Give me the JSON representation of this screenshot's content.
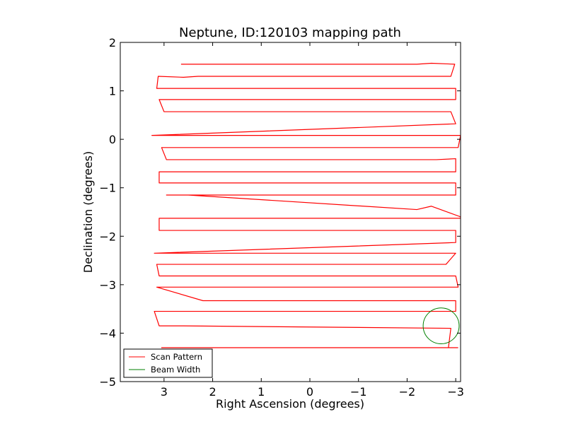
{
  "chart_data": {
    "type": "line",
    "title": "Neptune, ID:120103 mapping path",
    "xlabel": "Right Ascension (degrees)",
    "ylabel": "Declination (degrees)",
    "xlim": [
      3.9,
      -3.1
    ],
    "ylim": [
      -5,
      2
    ],
    "x_inverted": true,
    "grid": false,
    "legend_position": "lower-left",
    "xticks": [
      {
        "value": 3,
        "label": "3"
      },
      {
        "value": 2,
        "label": "2"
      },
      {
        "value": 1,
        "label": "1"
      },
      {
        "value": 0,
        "label": "0"
      },
      {
        "value": -1,
        "label": "−1"
      },
      {
        "value": -2,
        "label": "−2"
      },
      {
        "value": -3,
        "label": "−3"
      }
    ],
    "yticks": [
      {
        "value": 2,
        "label": "2"
      },
      {
        "value": 1,
        "label": "1"
      },
      {
        "value": 0,
        "label": "0"
      },
      {
        "value": -1,
        "label": "−1"
      },
      {
        "value": -2,
        "label": "−2"
      },
      {
        "value": -3,
        "label": "−3"
      },
      {
        "value": -4,
        "label": "−4"
      },
      {
        "value": -5,
        "label": "−5"
      }
    ],
    "series": [
      {
        "name": "Scan Pattern",
        "color": "#ff0000",
        "kind": "line",
        "x": [
          2.65,
          1.0,
          -2.2,
          -2.5,
          -2.98,
          -2.9,
          -1.6,
          2.3,
          2.6,
          3.12,
          3.15,
          -3.0,
          -3.0,
          3.1,
          3.0,
          2.6,
          2.2,
          -2.4,
          -2.9,
          -3.0,
          3.25,
          3.15,
          -3.1,
          -3.05,
          3.05,
          2.95,
          2.2,
          -2.6,
          -3.0,
          -3.0,
          3.1,
          3.1,
          -3.0,
          -3.0,
          2.95,
          2.5,
          -2.2,
          -2.5,
          -3.1,
          -3.1,
          3.1,
          3.1,
          -3.0,
          -3.0,
          3.2,
          2.55,
          2.2,
          -2.1,
          -3.0,
          -2.8,
          3.15,
          3.1,
          -2.2,
          -3.0,
          -3.05,
          3.05,
          3.15,
          2.2,
          -2.3,
          -3.0,
          -3.0,
          3.2,
          3.1,
          2.6,
          -2.9,
          -2.85,
          3.05,
          2.95,
          -3.0,
          -3.05
        ],
        "y": [
          1.55,
          1.55,
          1.55,
          1.57,
          1.55,
          1.3,
          1.3,
          1.3,
          1.28,
          1.3,
          1.05,
          1.05,
          0.82,
          0.82,
          0.57,
          0.57,
          0.57,
          0.57,
          0.57,
          0.32,
          0.08,
          0.08,
          0.08,
          -0.17,
          -0.17,
          -0.42,
          -0.42,
          -0.42,
          -0.4,
          -0.67,
          -0.67,
          -0.9,
          -0.9,
          -1.15,
          -1.15,
          -1.15,
          -1.45,
          -1.38,
          -1.6,
          -1.63,
          -1.63,
          -1.88,
          -1.88,
          -2.13,
          -2.35,
          -2.35,
          -2.35,
          -2.35,
          -2.35,
          -2.58,
          -2.58,
          -2.82,
          -2.82,
          -2.82,
          -3.05,
          -3.05,
          -3.05,
          -3.33,
          -3.33,
          -3.33,
          -3.55,
          -3.55,
          -3.85,
          -3.85,
          -3.9,
          -4.3,
          -4.3,
          -4.3,
          -4.3,
          -4.3
        ]
      },
      {
        "name": "Beam Width",
        "color": "#008000",
        "kind": "circle",
        "center": [
          -2.7,
          -3.85
        ],
        "radius_deg": 0.37
      }
    ]
  }
}
